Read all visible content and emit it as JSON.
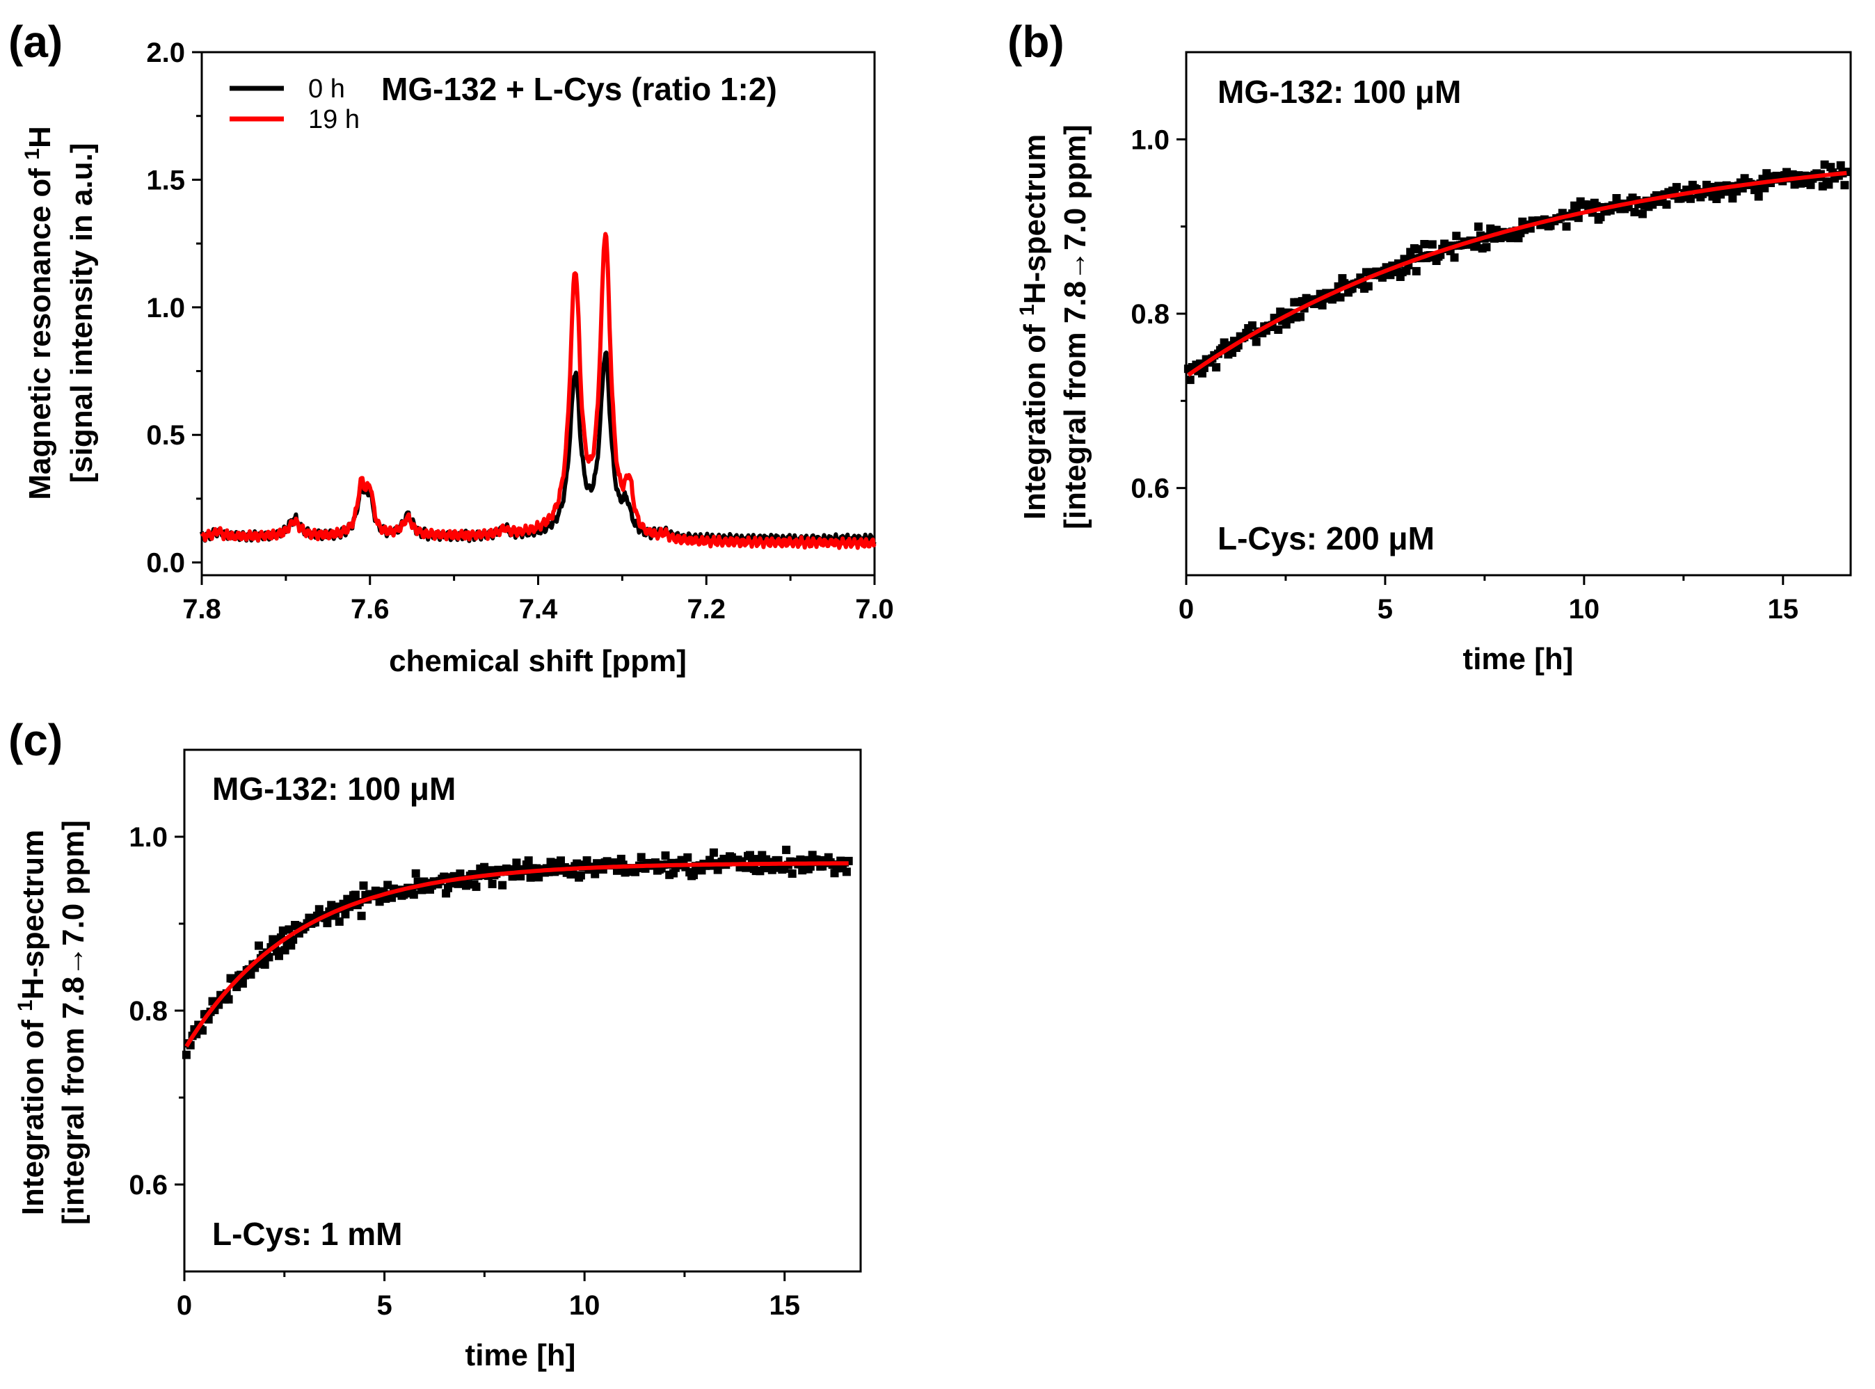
{
  "figure": {
    "panels": [
      {
        "letter": "(a)"
      },
      {
        "letter": "(b)"
      },
      {
        "letter": "(c)"
      }
    ]
  },
  "chart_data": [
    {
      "id": "a",
      "type": "line",
      "title": "MG-132 + L-Cys (ratio 1:2)",
      "xlabel": "chemical shift [ppm]",
      "ylabel_line1": "Magnetic resonance of ",
      "ylabel_sup": "1",
      "ylabel_line1_end": "H",
      "ylabel_line2": "[signal intensity in a.u.]",
      "xlim": [
        7.8,
        7.0
      ],
      "ylim": [
        -0.05,
        2.0
      ],
      "x_ticks": [
        7.8,
        7.6,
        7.4,
        7.2,
        7.0
      ],
      "x_tick_labels": [
        "7.8",
        "7.6",
        "7.4",
        "7.2",
        "7.0"
      ],
      "y_ticks": [
        0.0,
        0.5,
        1.0,
        1.5,
        2.0
      ],
      "y_tick_labels": [
        "0.0",
        "0.5",
        "1.0",
        "1.5",
        "2.0"
      ],
      "legend_position": "top-left",
      "series": [
        {
          "name": "0 h",
          "color": "#000000",
          "peaks": [
            {
              "x": 7.78,
              "height": 0.02,
              "width": 0.006
            },
            {
              "x": 7.69,
              "height": 0.07,
              "width": 0.008
            },
            {
              "x": 7.61,
              "height": 0.17,
              "width": 0.006
            },
            {
              "x": 7.6,
              "height": 0.13,
              "width": 0.005
            },
            {
              "x": 7.555,
              "height": 0.08,
              "width": 0.007
            },
            {
              "x": 7.44,
              "height": 0.03,
              "width": 0.006
            },
            {
              "x": 7.356,
              "height": 0.62,
              "width": 0.0075
            },
            {
              "x": 7.32,
              "height": 0.7,
              "width": 0.0075
            },
            {
              "x": 7.295,
              "height": 0.1,
              "width": 0.006
            },
            {
              "x": 7.25,
              "height": 0.02,
              "width": 0.006
            }
          ],
          "baseline_high": 0.1,
          "baseline_low": 0.09
        },
        {
          "name": "19 h",
          "color": "#ff0000",
          "peaks": [
            {
              "x": 7.78,
              "height": 0.02,
              "width": 0.006
            },
            {
              "x": 7.69,
              "height": 0.06,
              "width": 0.008
            },
            {
              "x": 7.61,
              "height": 0.19,
              "width": 0.006
            },
            {
              "x": 7.6,
              "height": 0.15,
              "width": 0.005
            },
            {
              "x": 7.555,
              "height": 0.07,
              "width": 0.007
            },
            {
              "x": 7.44,
              "height": 0.02,
              "width": 0.006
            },
            {
              "x": 7.356,
              "height": 1.0,
              "width": 0.0075
            },
            {
              "x": 7.32,
              "height": 1.17,
              "width": 0.0075
            },
            {
              "x": 7.292,
              "height": 0.18,
              "width": 0.006
            },
            {
              "x": 7.25,
              "height": 0.02,
              "width": 0.006
            }
          ],
          "baseline_high": 0.1,
          "baseline_low": 0.075
        }
      ]
    },
    {
      "id": "b",
      "type": "scatter",
      "annotation_top": "MG-132: 100 μM",
      "annotation_bottom": "L-Cys: 200 μM",
      "xlabel": "time [h]",
      "ylabel_line1": "Integration of ",
      "ylabel_sup": "1",
      "ylabel_line1_end": "H-spectrum",
      "ylabel_line2": "[integral from 7.8→7.0 ppm]",
      "xlim": [
        0,
        16.7
      ],
      "ylim": [
        0.5,
        1.1
      ],
      "x_ticks": [
        0,
        5,
        10,
        15
      ],
      "x_tick_labels": [
        "0",
        "5",
        "10",
        "15"
      ],
      "y_ticks": [
        0.6,
        0.8,
        1.0
      ],
      "y_tick_labels": [
        "0.6",
        "0.8",
        "1.0"
      ],
      "points": {
        "count": 330,
        "t_start": 0.05,
        "t_end": 16.6,
        "noise": 0.012,
        "seed": 7
      },
      "fit": {
        "label": "fit",
        "color": "#ff0000",
        "model": "exponential",
        "y0": 0.728,
        "plateau": 1.0,
        "tau": 8.5
      }
    },
    {
      "id": "c",
      "type": "scatter",
      "annotation_top": "MG-132: 100 μM",
      "annotation_bottom": "L-Cys: 1 mM",
      "xlabel": "time [h]",
      "ylabel_line1": "Integration of ",
      "ylabel_sup": "1",
      "ylabel_line1_end": "H-spectrum",
      "ylabel_line2": "[integral from 7.8→7.0 ppm]",
      "xlim": [
        0,
        16.9
      ],
      "ylim": [
        0.5,
        1.1
      ],
      "x_ticks": [
        0,
        5,
        10,
        15
      ],
      "x_tick_labels": [
        "0",
        "5",
        "10",
        "15"
      ],
      "y_ticks": [
        0.6,
        0.8,
        1.0
      ],
      "y_tick_labels": [
        "0.6",
        "0.8",
        "1.0"
      ],
      "points": {
        "count": 330,
        "t_start": 0.05,
        "t_end": 16.6,
        "noise": 0.012,
        "seed": 21
      },
      "fit": {
        "label": "fit",
        "color": "#ff0000",
        "model": "exponential",
        "y0": 0.755,
        "plateau": 0.97,
        "tau": 2.8
      }
    }
  ]
}
